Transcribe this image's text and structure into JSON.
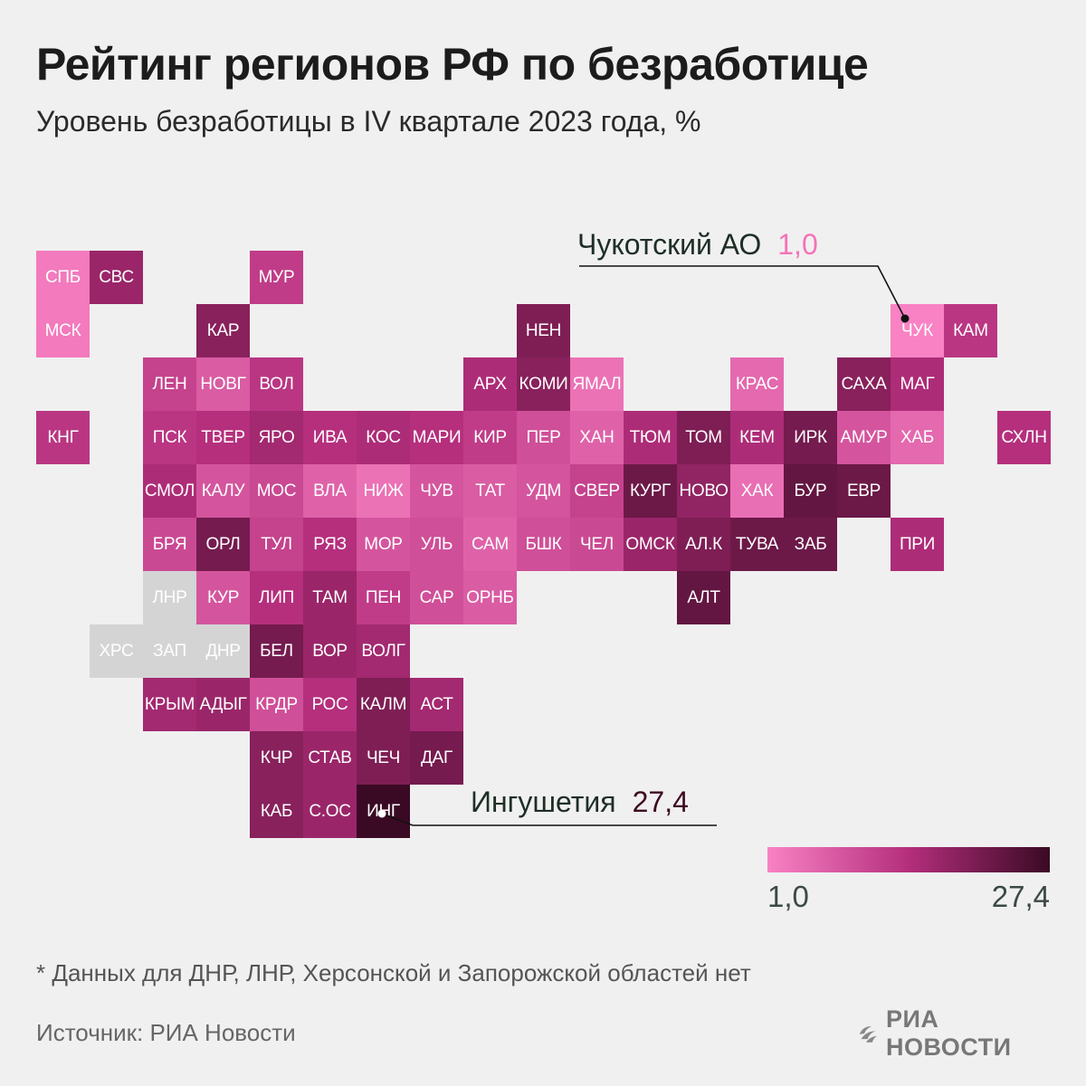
{
  "title": "Рейтинг регионов РФ по безработице",
  "subtitle": "Уровень безработицы в IV квартале 2023 года, %",
  "callouts": {
    "max": {
      "name": "Ингушетия",
      "value": "27,4"
    },
    "min": {
      "name": "Чукотский АО",
      "value": "1,0"
    }
  },
  "legend": {
    "min_label": "1,0",
    "max_label": "27,4",
    "colors": [
      "#f982c4",
      "#b42e7c",
      "#3a0a24"
    ]
  },
  "footnote": "* Данных для ДНР, ЛНР, Херсонской и Запорожской областей нет",
  "source": "Источник: РИА Новости",
  "logo": {
    "text": "РИА НОВОСТИ",
    "icon": "ria-logo-icon"
  },
  "chart_data": {
    "type": "heatmap",
    "title": "Рейтинг регионов РФ по безработице",
    "subtitle": "Уровень безработицы в IV квартале 2023 года, %",
    "scale": {
      "min": 1.0,
      "max": 27.4
    },
    "no_data_color": "#d4d4d4",
    "cells": [
      {
        "label": "СПБ",
        "row": 0,
        "col": 0,
        "level": 2.3
      },
      {
        "label": "СВС",
        "row": 0,
        "col": 1,
        "level": 17
      },
      {
        "label": "МУР",
        "row": 0,
        "col": 4,
        "level": 12
      },
      {
        "label": "МСК",
        "row": 1,
        "col": 0,
        "level": 2.2
      },
      {
        "label": "КАР",
        "row": 1,
        "col": 3,
        "level": 19
      },
      {
        "label": "НЕН",
        "row": 1,
        "col": 9,
        "level": 20
      },
      {
        "label": "ЧУК",
        "row": 1,
        "col": 16,
        "level": 1.0
      },
      {
        "label": "КАМ",
        "row": 1,
        "col": 17,
        "level": 13
      },
      {
        "label": "ЛЕН",
        "row": 2,
        "col": 2,
        "level": 11
      },
      {
        "label": "НОВГ",
        "row": 2,
        "col": 3,
        "level": 7
      },
      {
        "label": "ВОЛ",
        "row": 2,
        "col": 4,
        "level": 13
      },
      {
        "label": "АРХ",
        "row": 2,
        "col": 8,
        "level": 15
      },
      {
        "label": "КОМИ",
        "row": 2,
        "col": 9,
        "level": 19
      },
      {
        "label": "ЯМАЛ",
        "row": 2,
        "col": 10,
        "level": 3.5
      },
      {
        "label": "КРАС",
        "row": 2,
        "col": 13,
        "level": 5
      },
      {
        "label": "САХА",
        "row": 2,
        "col": 15,
        "level": 19
      },
      {
        "label": "МАГ",
        "row": 2,
        "col": 16,
        "level": 15
      },
      {
        "label": "КНГ",
        "row": 3,
        "col": 0,
        "level": 13
      },
      {
        "label": "ПСК",
        "row": 3,
        "col": 2,
        "level": 13
      },
      {
        "label": "ТВЕР",
        "row": 3,
        "col": 3,
        "level": 14
      },
      {
        "label": "ЯРО",
        "row": 3,
        "col": 4,
        "level": 16
      },
      {
        "label": "ИВА",
        "row": 3,
        "col": 5,
        "level": 14
      },
      {
        "label": "КОС",
        "row": 3,
        "col": 6,
        "level": 15
      },
      {
        "label": "МАРИ",
        "row": 3,
        "col": 7,
        "level": 14
      },
      {
        "label": "КИР",
        "row": 3,
        "col": 8,
        "level": 12
      },
      {
        "label": "ПЕР",
        "row": 3,
        "col": 9,
        "level": 9
      },
      {
        "label": "ХАН",
        "row": 3,
        "col": 10,
        "level": 6
      },
      {
        "label": "ТЮМ",
        "row": 3,
        "col": 11,
        "level": 15
      },
      {
        "label": "ТОМ",
        "row": 3,
        "col": 12,
        "level": 20
      },
      {
        "label": "КЕМ",
        "row": 3,
        "col": 13,
        "level": 15
      },
      {
        "label": "ИРК",
        "row": 3,
        "col": 14,
        "level": 21
      },
      {
        "label": "АМУР",
        "row": 3,
        "col": 15,
        "level": 8
      },
      {
        "label": "ХАБ",
        "row": 3,
        "col": 16,
        "level": 5
      },
      {
        "label": "СХЛН",
        "row": 3,
        "col": 18,
        "level": 14
      },
      {
        "label": "СМОЛ",
        "row": 4,
        "col": 2,
        "level": 15
      },
      {
        "label": "КАЛУ",
        "row": 4,
        "col": 3,
        "level": 8
      },
      {
        "label": "МОС",
        "row": 4,
        "col": 4,
        "level": 10
      },
      {
        "label": "ВЛА",
        "row": 4,
        "col": 5,
        "level": 6
      },
      {
        "label": "НИЖ",
        "row": 4,
        "col": 6,
        "level": 3.5
      },
      {
        "label": "ЧУВ",
        "row": 4,
        "col": 7,
        "level": 8
      },
      {
        "label": "ТАТ",
        "row": 4,
        "col": 8,
        "level": 7
      },
      {
        "label": "УДМ",
        "row": 4,
        "col": 9,
        "level": 8
      },
      {
        "label": "СВЕР",
        "row": 4,
        "col": 10,
        "level": 11
      },
      {
        "label": "КУРГ",
        "row": 4,
        "col": 11,
        "level": 22
      },
      {
        "label": "НОВО",
        "row": 4,
        "col": 12,
        "level": 18
      },
      {
        "label": "ХАК",
        "row": 4,
        "col": 13,
        "level": 4
      },
      {
        "label": "БУР",
        "row": 4,
        "col": 14,
        "level": 23
      },
      {
        "label": "ЕВР",
        "row": 4,
        "col": 15,
        "level": 22
      },
      {
        "label": "БРЯ",
        "row": 5,
        "col": 2,
        "level": 10
      },
      {
        "label": "ОРЛ",
        "row": 5,
        "col": 3,
        "level": 21
      },
      {
        "label": "ТУЛ",
        "row": 5,
        "col": 4,
        "level": 11
      },
      {
        "label": "РЯЗ",
        "row": 5,
        "col": 5,
        "level": 14
      },
      {
        "label": "МОР",
        "row": 5,
        "col": 6,
        "level": 8
      },
      {
        "label": "УЛЬ",
        "row": 5,
        "col": 7,
        "level": 9
      },
      {
        "label": "САМ",
        "row": 5,
        "col": 8,
        "level": 6
      },
      {
        "label": "БШК",
        "row": 5,
        "col": 9,
        "level": 9
      },
      {
        "label": "ЧЕЛ",
        "row": 5,
        "col": 10,
        "level": 10
      },
      {
        "label": "ОМСК",
        "row": 5,
        "col": 11,
        "level": 17
      },
      {
        "label": "АЛ.К",
        "row": 5,
        "col": 12,
        "level": 20
      },
      {
        "label": "ТУВА",
        "row": 5,
        "col": 13,
        "level": 22
      },
      {
        "label": "ЗАБ",
        "row": 5,
        "col": 14,
        "level": 22
      },
      {
        "label": "ПРИ",
        "row": 5,
        "col": 16,
        "level": 15
      },
      {
        "label": "ЛНР",
        "row": 6,
        "col": 2,
        "level": null
      },
      {
        "label": "КУР",
        "row": 6,
        "col": 3,
        "level": 8
      },
      {
        "label": "ЛИП",
        "row": 6,
        "col": 4,
        "level": 14
      },
      {
        "label": "ТАМ",
        "row": 6,
        "col": 5,
        "level": 17
      },
      {
        "label": "ПЕН",
        "row": 6,
        "col": 6,
        "level": 12
      },
      {
        "label": "САР",
        "row": 6,
        "col": 7,
        "level": 9
      },
      {
        "label": "ОРНБ",
        "row": 6,
        "col": 8,
        "level": 7
      },
      {
        "label": "АЛТ",
        "row": 6,
        "col": 12,
        "level": 23
      },
      {
        "label": "ХРС",
        "row": 7,
        "col": 1,
        "level": null
      },
      {
        "label": "ЗАП",
        "row": 7,
        "col": 2,
        "level": null
      },
      {
        "label": "ДНР",
        "row": 7,
        "col": 3,
        "level": null
      },
      {
        "label": "БЕЛ",
        "row": 7,
        "col": 4,
        "level": 21
      },
      {
        "label": "ВОР",
        "row": 7,
        "col": 5,
        "level": 17
      },
      {
        "label": "ВОЛГ",
        "row": 7,
        "col": 6,
        "level": 16
      },
      {
        "label": "КРЫМ",
        "row": 8,
        "col": 2,
        "level": 16
      },
      {
        "label": "АДЫГ",
        "row": 8,
        "col": 3,
        "level": 17
      },
      {
        "label": "КРДР",
        "row": 8,
        "col": 4,
        "level": 9
      },
      {
        "label": "РОС",
        "row": 8,
        "col": 5,
        "level": 14
      },
      {
        "label": "КАЛМ",
        "row": 8,
        "col": 6,
        "level": 20
      },
      {
        "label": "АСТ",
        "row": 8,
        "col": 7,
        "level": 16
      },
      {
        "label": "КЧР",
        "row": 9,
        "col": 4,
        "level": 19
      },
      {
        "label": "СТАВ",
        "row": 9,
        "col": 5,
        "level": 17
      },
      {
        "label": "ЧЕЧ",
        "row": 9,
        "col": 6,
        "level": 20
      },
      {
        "label": "ДАГ",
        "row": 9,
        "col": 7,
        "level": 21
      },
      {
        "label": "КАБ",
        "row": 10,
        "col": 4,
        "level": 19
      },
      {
        "label": "С.ОС",
        "row": 10,
        "col": 5,
        "level": 17
      },
      {
        "label": "ИНГ",
        "row": 10,
        "col": 6,
        "level": 27.4
      }
    ]
  }
}
